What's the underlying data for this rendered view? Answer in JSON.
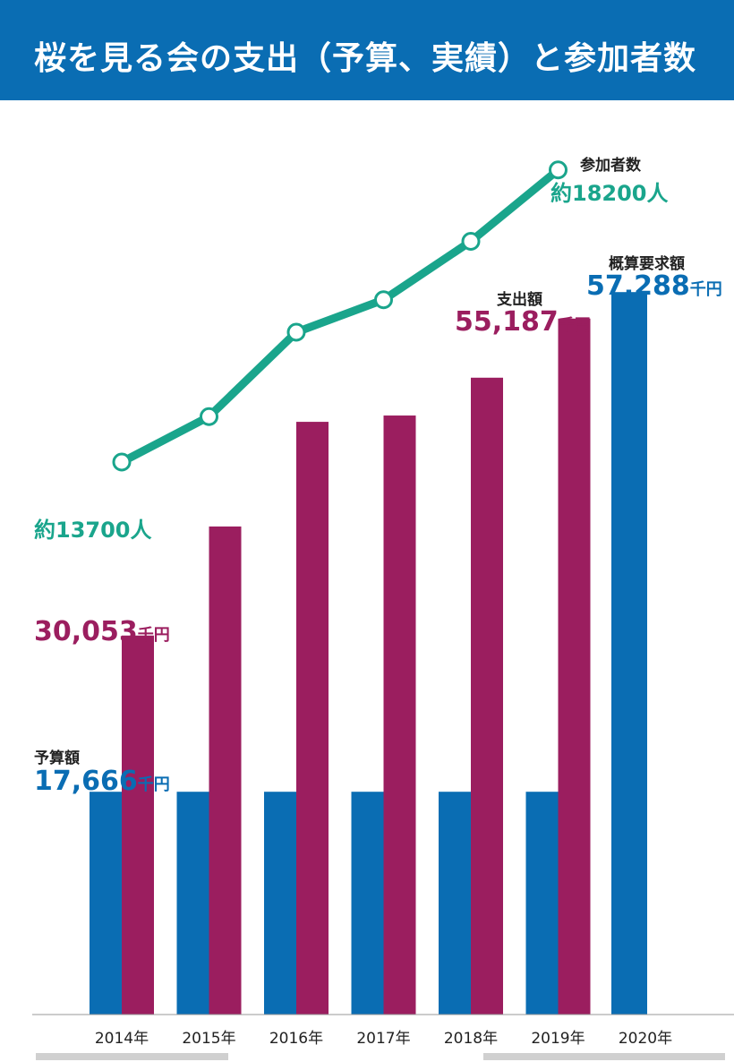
{
  "header": {
    "title": "桜を見る会の支出（予算、実績）と参加者数"
  },
  "chart_data": {
    "type": "bar",
    "categories": [
      "2014年",
      "2015年",
      "2016年",
      "2017年",
      "2018年",
      "2019年",
      "2020年"
    ],
    "ylim": [
      0,
      60000
    ],
    "series": [
      {
        "name": "予算額",
        "color": "#0a6db3",
        "values": [
          17666,
          17666,
          17666,
          17666,
          17666,
          17666,
          57288
        ]
      },
      {
        "name": "支出額",
        "color": "#9b1e5f",
        "values": [
          30053,
          38700,
          47000,
          47500,
          50500,
          55187,
          null
        ]
      }
    ],
    "line": {
      "name": "参加者数",
      "color": "#1aa58c",
      "values": [
        13700,
        14400,
        15700,
        16200,
        17100,
        18200,
        null
      ],
      "ylim": [
        12500,
        18500
      ]
    },
    "annotations": {
      "budget_caption": "予算額",
      "budget_value": "17,666",
      "spend_first_value": "30,053",
      "spend_caption": "支出額",
      "spend_last_value": "55,187",
      "request_caption": "概算要求額",
      "request_value": "57,288",
      "unit": "千円",
      "participants_caption": "参加者数",
      "participants_first": "約13700人",
      "participants_last": "約18200人"
    }
  }
}
